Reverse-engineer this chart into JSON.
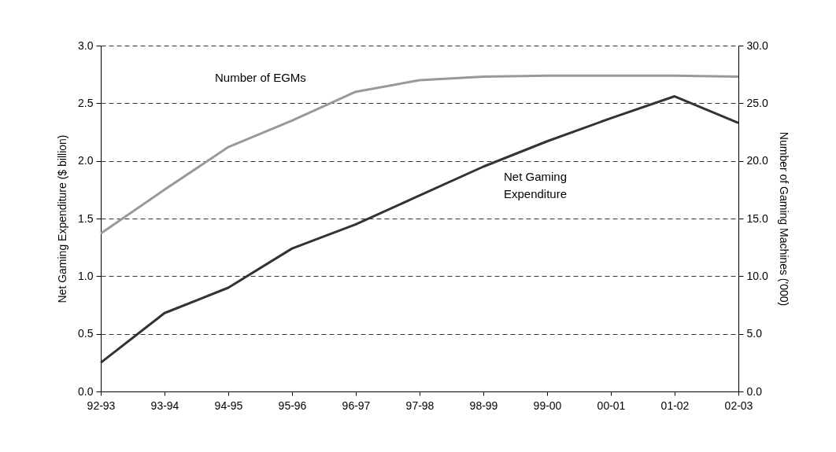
{
  "chart_data": {
    "type": "line",
    "categories": [
      "92-93",
      "93-94",
      "94-95",
      "95-96",
      "96-97",
      "97-98",
      "98-99",
      "99-00",
      "00-01",
      "01-02",
      "02-03"
    ],
    "series": [
      {
        "name": "Net Gaming Expenditure",
        "color": "#333333",
        "values": [
          0.25,
          0.68,
          0.9,
          1.24,
          1.45,
          1.7,
          1.95,
          2.17,
          2.37,
          2.56,
          2.33
        ]
      },
      {
        "name": "Number of EGMs",
        "color": "#999999",
        "axis": "y2",
        "values": [
          13.7,
          17.5,
          21.2,
          23.5,
          26.0,
          27.0,
          27.3,
          27.4,
          27.4,
          27.4,
          27.3
        ]
      }
    ],
    "ylabel": "Net Gaming Expenditure ($ billion)",
    "y2label": "Number of Gaming Machines ('000)",
    "ylim": [
      0,
      3
    ],
    "yticks": [
      {
        "value": 0,
        "label": "0.0"
      },
      {
        "value": 0.5,
        "label": "0.5"
      },
      {
        "value": 1,
        "label": "1.0"
      },
      {
        "value": 1.5,
        "label": "1.5"
      },
      {
        "value": 2,
        "label": "2.0"
      },
      {
        "value": 2.5,
        "label": "2.5"
      },
      {
        "value": 3,
        "label": "3.0"
      }
    ],
    "y2lim": [
      0,
      30
    ],
    "y2ticks": [
      {
        "value": 0,
        "label": "0.0"
      },
      {
        "value": 5,
        "label": "5.0"
      },
      {
        "value": 10,
        "label": "10.0"
      },
      {
        "value": 15,
        "label": "15.0"
      },
      {
        "value": 20,
        "label": "20.0"
      },
      {
        "value": 25,
        "label": "25.0"
      },
      {
        "value": 30,
        "label": "30.0"
      }
    ],
    "grid": "y",
    "legend": false,
    "marker": "none",
    "line_style": "solid"
  }
}
